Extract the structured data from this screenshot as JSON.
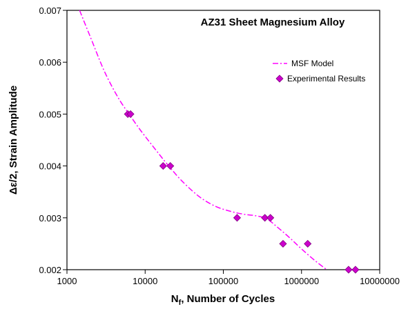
{
  "chart_data": {
    "type": "scatter",
    "title": "AZ31 Sheet Magnesium Alloy",
    "xlabel_main": "N",
    "xlabel_sub": "f",
    "xlabel_rest": ", Number of Cycles",
    "ylabel": "Δε/2, Strain Amplitude",
    "x_scale": "log",
    "xlim": [
      1000,
      10000000
    ],
    "ylim": [
      0.002,
      0.007
    ],
    "x_ticks": [
      1000,
      10000,
      100000,
      1000000,
      10000000
    ],
    "x_tick_labels": [
      "1000",
      "10000",
      "100000",
      "1000000",
      "10000000"
    ],
    "y_ticks": [
      0.002,
      0.003,
      0.004,
      0.005,
      0.006,
      0.007
    ],
    "y_tick_labels": [
      "0.002",
      "0.003",
      "0.004",
      "0.005",
      "0.006",
      "0.007"
    ],
    "grid": false,
    "legend_position": "top-right",
    "series": [
      {
        "name": "MSF Model",
        "style": "dash-dot line",
        "color": "#ff00ff",
        "x": [
          1450,
          2000,
          3000,
          4500,
          6300,
          9000,
          14000,
          20000,
          30000,
          50000,
          80000,
          120000,
          180000,
          260000,
          360000,
          500000,
          700000,
          1000000,
          1500000,
          2100000
        ],
        "y": [
          0.007,
          0.00648,
          0.00583,
          0.00532,
          0.00499,
          0.00466,
          0.00429,
          0.004,
          0.0037,
          0.0034,
          0.00322,
          0.00313,
          0.00307,
          0.00304,
          0.00298,
          0.00281,
          0.00262,
          0.0024,
          0.00217,
          0.002
        ]
      },
      {
        "name": "Experimental Results",
        "style": "diamond markers",
        "color": "#cc00cc",
        "x": [
          6000,
          6500,
          17000,
          21000,
          150000,
          340000,
          400000,
          580000,
          1200000,
          4000000,
          4900000
        ],
        "y": [
          0.005,
          0.005,
          0.004,
          0.004,
          0.003,
          0.003,
          0.003,
          0.0025,
          0.0025,
          0.002,
          0.002
        ]
      }
    ]
  }
}
